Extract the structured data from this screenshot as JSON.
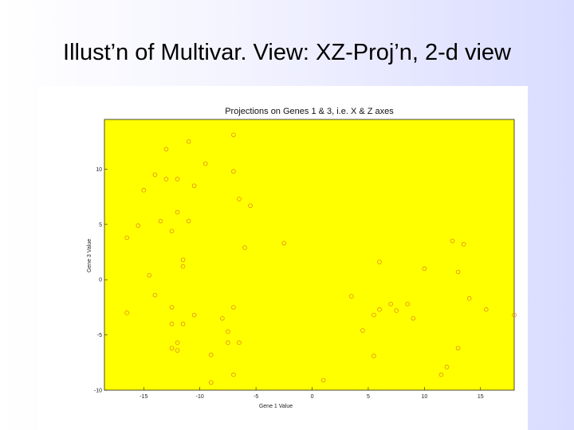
{
  "slide": {
    "title": "Illust’n of Multivar. View: XZ-Proj’n, 2-d view"
  },
  "chart_data": {
    "type": "scatter",
    "title": "Projections on Genes 1 & 3, i.e. X & Z axes",
    "xlabel": "Gene 1 Value",
    "ylabel": "Gene 3 Value",
    "xlim": [
      -18.5,
      18
    ],
    "ylim": [
      -10,
      14.5
    ],
    "xticks": [
      -15,
      -10,
      -5,
      0,
      5,
      10,
      15
    ],
    "yticks": [
      -10,
      -5,
      0,
      5,
      10
    ],
    "grid": false,
    "colors": {
      "plot_bg": "#ffff00",
      "marker": "#e08a1a",
      "frame": "#222222"
    },
    "points": [
      [
        -7,
        13.1
      ],
      [
        -11,
        12.5
      ],
      [
        -13,
        11.8
      ],
      [
        -9.5,
        10.5
      ],
      [
        -7,
        9.8
      ],
      [
        -14,
        9.5
      ],
      [
        -13,
        9.1
      ],
      [
        -12,
        9.1
      ],
      [
        -10.5,
        8.5
      ],
      [
        -15,
        8.1
      ],
      [
        -6.5,
        7.3
      ],
      [
        -5.5,
        6.7
      ],
      [
        -12,
        6.1
      ],
      [
        -13.5,
        5.3
      ],
      [
        -11,
        5.3
      ],
      [
        -15.5,
        4.9
      ],
      [
        -12.5,
        4.4
      ],
      [
        -16.5,
        3.8
      ],
      [
        -2.5,
        3.3
      ],
      [
        -6,
        2.9
      ],
      [
        -11.5,
        1.8
      ],
      [
        -11.5,
        1.2
      ],
      [
        12.5,
        3.5
      ],
      [
        13.5,
        3.2
      ],
      [
        6,
        1.6
      ],
      [
        10,
        1.0
      ],
      [
        13,
        0.7
      ],
      [
        -14.5,
        0.4
      ],
      [
        -14,
        -1.4
      ],
      [
        3.5,
        -1.5
      ],
      [
        14,
        -1.7
      ],
      [
        7,
        -2.2
      ],
      [
        8.5,
        -2.2
      ],
      [
        -12.5,
        -2.5
      ],
      [
        -7,
        -2.5
      ],
      [
        6,
        -2.7
      ],
      [
        7.5,
        -2.8
      ],
      [
        15.5,
        -2.7
      ],
      [
        -16.5,
        -3.0
      ],
      [
        -10.5,
        -3.2
      ],
      [
        5.5,
        -3.2
      ],
      [
        18,
        -3.2
      ],
      [
        -8,
        -3.5
      ],
      [
        9,
        -3.5
      ],
      [
        -12.5,
        -4.0
      ],
      [
        -11.5,
        -4.0
      ],
      [
        4.5,
        -4.6
      ],
      [
        -7.5,
        -4.7
      ],
      [
        -12,
        -5.7
      ],
      [
        -7.5,
        -5.7
      ],
      [
        -6.5,
        -5.7
      ],
      [
        -12.5,
        -6.2
      ],
      [
        13,
        -6.2
      ],
      [
        -12,
        -6.4
      ],
      [
        -9,
        -6.8
      ],
      [
        5.5,
        -6.9
      ],
      [
        12,
        -7.9
      ],
      [
        11.5,
        -8.6
      ],
      [
        -7,
        -8.6
      ],
      [
        1,
        -9.1
      ],
      [
        -9,
        -9.3
      ]
    ]
  }
}
